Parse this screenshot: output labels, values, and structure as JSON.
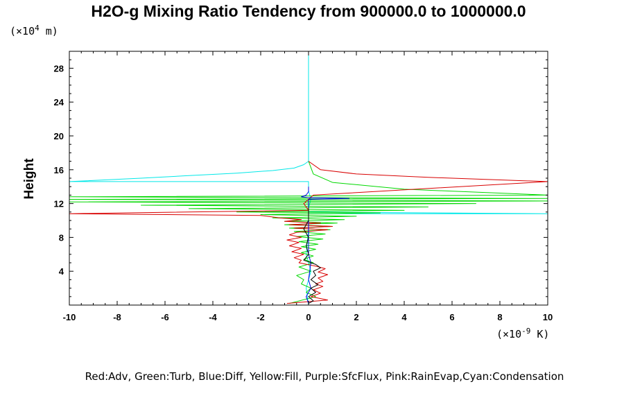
{
  "chart_data": {
    "type": "line",
    "title": "H2O-g Mixing Ratio Tendency from 900000.0 to 1000000.0",
    "ylabel": "Height",
    "y_unit": {
      "prefix": "(×10",
      "exp": "4",
      "suffix": " m)"
    },
    "x_unit": {
      "prefix": "(×10",
      "exp": "-9",
      "suffix": " K)"
    },
    "xlim": [
      -10,
      10
    ],
    "ylim": [
      0,
      30
    ],
    "x_ticks": [
      "-10",
      "-8",
      "-6",
      "-4",
      "-2",
      "0",
      "2",
      "4",
      "6",
      "8",
      "10"
    ],
    "y_ticks": [
      "4",
      "8",
      "12",
      "16",
      "20",
      "24",
      "28"
    ],
    "legend_text": "Red:Adv, Green:Turb, Blue:Diff, Yellow:Fill, Purple:SfcFlux, Pink:RainEvap,Cyan:Condensation",
    "series": [
      {
        "color": "#00e8e8",
        "points": [
          [
            0,
            30
          ],
          [
            0,
            17
          ],
          [
            -0.2,
            16.6
          ],
          [
            -0.6,
            16.2
          ],
          [
            -1.5,
            15.9
          ],
          [
            -3,
            15.6
          ],
          [
            -5,
            15.3
          ],
          [
            -7,
            15.0
          ],
          [
            -10,
            14.6
          ],
          [
            0,
            14.6
          ],
          [
            0,
            13.5
          ],
          [
            0.1,
            12.5
          ],
          [
            0,
            11.5
          ],
          [
            0,
            11
          ],
          [
            10,
            10.8
          ],
          [
            0,
            10.8
          ],
          [
            0,
            9
          ],
          [
            -0.1,
            6
          ],
          [
            0.1,
            4
          ],
          [
            -0.1,
            2
          ],
          [
            0,
            0
          ]
        ]
      },
      {
        "color": "#00d800",
        "points": [
          [
            0,
            17
          ],
          [
            0.2,
            15.5
          ],
          [
            1,
            14.5
          ],
          [
            4,
            13.7
          ],
          [
            10,
            13.0
          ],
          [
            -10,
            12.8
          ],
          [
            10,
            12.6
          ],
          [
            -10,
            12.5
          ],
          [
            10,
            12.3
          ],
          [
            -10,
            12.2
          ],
          [
            7,
            12.0
          ],
          [
            -7,
            11.8
          ],
          [
            5,
            11.6
          ],
          [
            -5,
            11.4
          ],
          [
            4,
            11.2
          ],
          [
            -3,
            11.0
          ],
          [
            3,
            10.9
          ],
          [
            -2,
            10.7
          ],
          [
            2,
            10.5
          ],
          [
            -1.5,
            10.3
          ],
          [
            1.5,
            10.1
          ],
          [
            -1,
            9.9
          ],
          [
            1.2,
            9.7
          ],
          [
            -1,
            9.5
          ],
          [
            1,
            9.3
          ],
          [
            -0.8,
            9.1
          ],
          [
            0.9,
            8.9
          ],
          [
            -0.6,
            8.7
          ],
          [
            0.7,
            8.4
          ],
          [
            -0.5,
            8.1
          ],
          [
            0.6,
            7.8
          ],
          [
            -0.4,
            7.5
          ],
          [
            0.4,
            7.2
          ],
          [
            -0.3,
            6.9
          ],
          [
            0.3,
            6.6
          ],
          [
            -0.3,
            6.2
          ],
          [
            0.2,
            5.8
          ],
          [
            -0.2,
            5.4
          ],
          [
            0.2,
            5.0
          ],
          [
            -0.4,
            4.5
          ],
          [
            0.1,
            4.0
          ],
          [
            -0.5,
            3.5
          ],
          [
            -0.2,
            3.0
          ],
          [
            -0.3,
            2.5
          ],
          [
            0.1,
            2.0
          ],
          [
            -0.1,
            1.5
          ],
          [
            0.3,
            1.0
          ],
          [
            -0.8,
            0.2
          ]
        ]
      },
      {
        "color": "#d80000",
        "points": [
          [
            0,
            17
          ],
          [
            0.5,
            16
          ],
          [
            2,
            15.5
          ],
          [
            5,
            15.1
          ],
          [
            10,
            14.6
          ],
          [
            0.2,
            13
          ],
          [
            -0.2,
            12
          ],
          [
            0,
            11.2
          ],
          [
            -10,
            10.8
          ],
          [
            -2,
            10.6
          ],
          [
            -1.2,
            10.3
          ],
          [
            -0.3,
            10.1
          ],
          [
            -1.0,
            9.9
          ],
          [
            0.5,
            9.7
          ],
          [
            -0.8,
            9.5
          ],
          [
            1,
            9.3
          ],
          [
            -0.6,
            9.1
          ],
          [
            0.8,
            8.9
          ],
          [
            -0.5,
            8.6
          ],
          [
            -0.8,
            8.3
          ],
          [
            -0.3,
            8.0
          ],
          [
            -0.9,
            7.7
          ],
          [
            -0.4,
            7.4
          ],
          [
            -0.8,
            7.0
          ],
          [
            -0.3,
            6.7
          ],
          [
            -0.7,
            6.3
          ],
          [
            -0.2,
            6.0
          ],
          [
            -0.6,
            5.6
          ],
          [
            -0.3,
            5.3
          ],
          [
            -0.4,
            5.0
          ],
          [
            0.3,
            4.6
          ],
          [
            0.7,
            4.3
          ],
          [
            0.4,
            3.9
          ],
          [
            0.8,
            3.6
          ],
          [
            0.4,
            3.2
          ],
          [
            0.6,
            2.8
          ],
          [
            0.3,
            2.5
          ],
          [
            0.6,
            2.2
          ],
          [
            0.2,
            1.8
          ],
          [
            0.5,
            1.4
          ],
          [
            0.1,
            1.0
          ],
          [
            0.8,
            0.6
          ],
          [
            -0.9,
            0.2
          ]
        ]
      },
      {
        "color": "#0000e0",
        "points": [
          [
            0,
            14
          ],
          [
            0,
            13.4
          ],
          [
            -0.1,
            13.0
          ],
          [
            -0.3,
            12.8
          ],
          [
            0,
            12.7
          ],
          [
            1.7,
            12.6
          ],
          [
            0,
            12.5
          ],
          [
            0,
            11
          ],
          [
            0,
            6
          ],
          [
            0.1,
            5
          ],
          [
            0,
            3
          ],
          [
            0.1,
            2
          ],
          [
            -0.1,
            1
          ],
          [
            0,
            0.2
          ]
        ]
      },
      {
        "color": "#000000",
        "points": [
          [
            0,
            11.5
          ],
          [
            0,
            10
          ],
          [
            -0.2,
            9
          ],
          [
            0,
            8
          ],
          [
            -0.1,
            7
          ],
          [
            0,
            6
          ],
          [
            -0.2,
            5.3
          ],
          [
            0.3,
            4.8
          ],
          [
            0.5,
            4.4
          ],
          [
            0.2,
            4
          ],
          [
            0.3,
            3.5
          ],
          [
            0.1,
            3
          ],
          [
            0.4,
            2.4
          ],
          [
            0.1,
            2
          ],
          [
            0.3,
            1.5
          ],
          [
            0,
            1
          ],
          [
            0.2,
            0.5
          ],
          [
            0,
            0.2
          ]
        ]
      }
    ]
  }
}
